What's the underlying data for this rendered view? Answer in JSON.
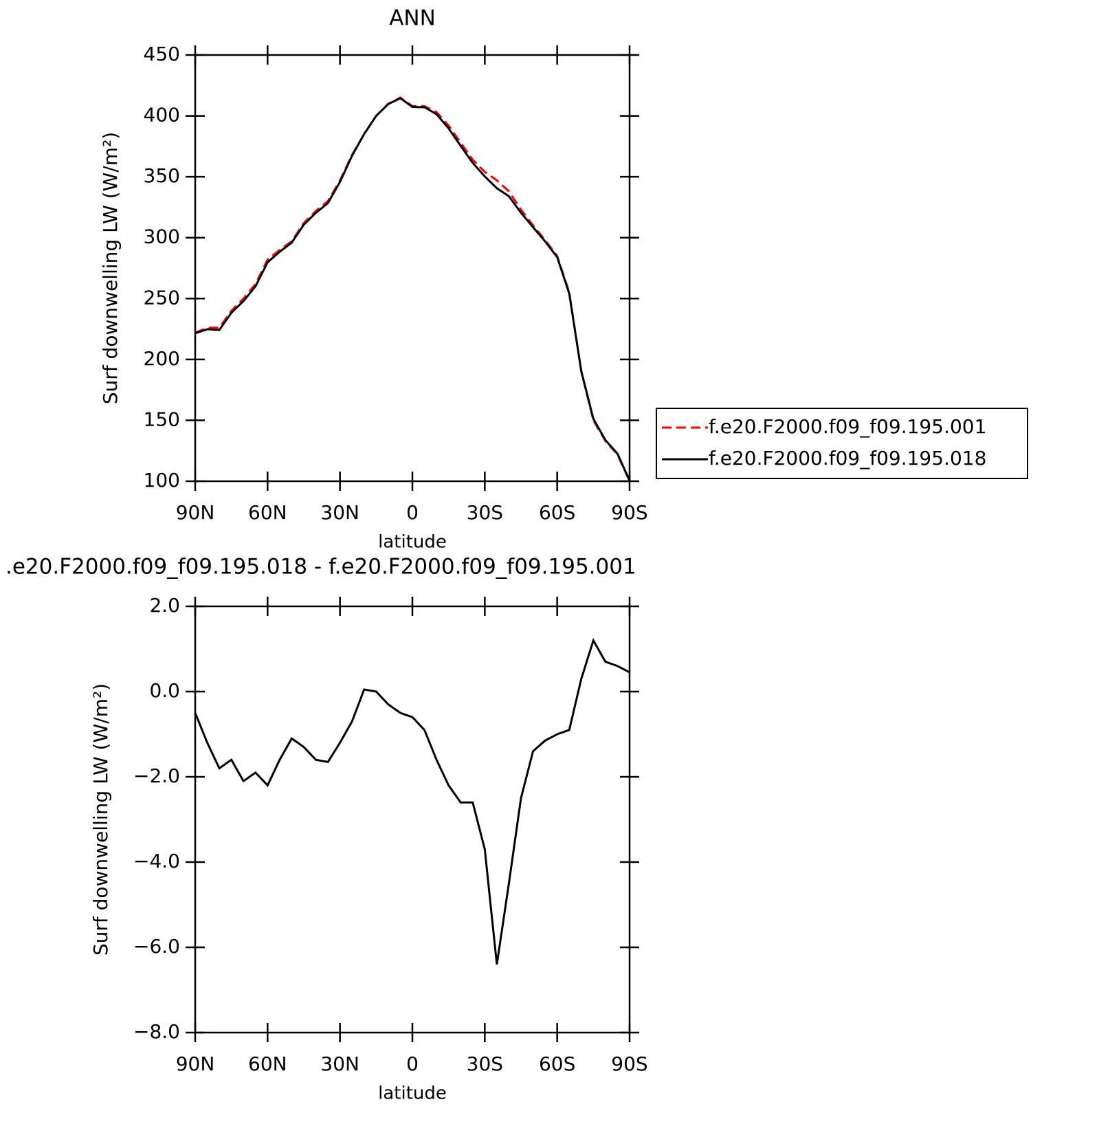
{
  "chart_data": [
    {
      "type": "line",
      "title": "ANN",
      "xlabel": "latitude",
      "ylabel": "Surf downwelling LW (W/m²)",
      "x": [
        90,
        85,
        80,
        75,
        70,
        65,
        60,
        55,
        50,
        45,
        40,
        35,
        30,
        25,
        20,
        15,
        10,
        5,
        0,
        -5,
        -10,
        -15,
        -20,
        -25,
        -30,
        -35,
        -40,
        -45,
        -50,
        -55,
        -60,
        -65,
        -70,
        -75,
        -80,
        -85,
        -90
      ],
      "xlim": [
        90,
        -90
      ],
      "xticks": [
        {
          "value": 90,
          "label": "90N"
        },
        {
          "value": 60,
          "label": "60N"
        },
        {
          "value": 30,
          "label": "30N"
        },
        0,
        {
          "value": -30,
          "label": "30S"
        },
        {
          "value": -60,
          "label": "60S"
        },
        {
          "value": -90,
          "label": "90S"
        }
      ],
      "ylim": [
        100,
        450
      ],
      "yticks": [
        100,
        150,
        200,
        250,
        300,
        350,
        400,
        450
      ],
      "legend": "right",
      "series": [
        {
          "name": "f.e20.F2000.f09_f09.195.001",
          "color": "#ff0000",
          "line_style": "dashed",
          "values": [
            222,
            226,
            226,
            240,
            250,
            262,
            282,
            290,
            297,
            312,
            322,
            330,
            347,
            368,
            385,
            400,
            410,
            415,
            408,
            408,
            403,
            392,
            378,
            364,
            354,
            347,
            338,
            323,
            310,
            298,
            285,
            255,
            190,
            150,
            133,
            122,
            100
          ]
        },
        {
          "name": "f.e20.F2000.f09_f09.195.018",
          "color": "#000000",
          "line_style": "solid",
          "values": [
            221.5,
            224.8,
            224.2,
            238.4,
            247.9,
            260.1,
            279.8,
            288.4,
            295.9,
            310.7,
            320.4,
            328.4,
            345.8,
            367.3,
            385.1,
            400,
            409.7,
            414.5,
            407.4,
            407.1,
            401.4,
            389.8,
            375.4,
            361.4,
            350.3,
            340.6,
            334,
            320.5,
            308.6,
            296.9,
            284,
            254.1,
            190.3,
            151.2,
            133.7,
            122.6,
            100.5
          ]
        }
      ]
    },
    {
      "type": "line",
      "title": ".e20.F2000.f09_f09.195.018 - f.e20.F2000.f09_f09.195.001",
      "xlabel": "latitude",
      "ylabel": "Surf downwelling LW (W/m²)",
      "x": [
        90,
        85,
        80,
        75,
        70,
        65,
        60,
        55,
        50,
        45,
        40,
        35,
        30,
        25,
        20,
        15,
        10,
        5,
        0,
        -5,
        -10,
        -15,
        -20,
        -25,
        -30,
        -35,
        -40,
        -45,
        -50,
        -55,
        -60,
        -65,
        -70,
        -75,
        -80,
        -85,
        -90
      ],
      "xlim": [
        90,
        -90
      ],
      "xticks": [
        {
          "value": 90,
          "label": "90N"
        },
        {
          "value": 60,
          "label": "60N"
        },
        {
          "value": 30,
          "label": "30N"
        },
        0,
        {
          "value": -30,
          "label": "30S"
        },
        {
          "value": -60,
          "label": "60S"
        },
        {
          "value": -90,
          "label": "90S"
        }
      ],
      "ylim": [
        -8,
        2
      ],
      "yticks": [
        {
          "value": -8,
          "label": "−8.0"
        },
        {
          "value": -6,
          "label": "−6.0"
        },
        {
          "value": -4,
          "label": "−4.0"
        },
        {
          "value": -2,
          "label": "−2.0"
        },
        {
          "value": 0,
          "label": "0.0"
        },
        {
          "value": 2,
          "label": "2.0"
        }
      ],
      "series": [
        {
          "color": "#000000",
          "line_style": "solid",
          "values": [
            -0.5,
            -1.2,
            -1.8,
            -1.6,
            -2.1,
            -1.9,
            -2.2,
            -1.6,
            -1.1,
            -1.3,
            -1.6,
            -1.65,
            -1.2,
            -0.7,
            0.05,
            0,
            -0.3,
            -0.5,
            -0.6,
            -0.9,
            -1.6,
            -2.2,
            -2.6,
            -2.6,
            -3.7,
            -6.4,
            -4.5,
            -2.5,
            -1.4,
            -1.15,
            -1,
            -0.9,
            0.3,
            1.2,
            0.7,
            0.6,
            0.45
          ]
        }
      ]
    }
  ]
}
